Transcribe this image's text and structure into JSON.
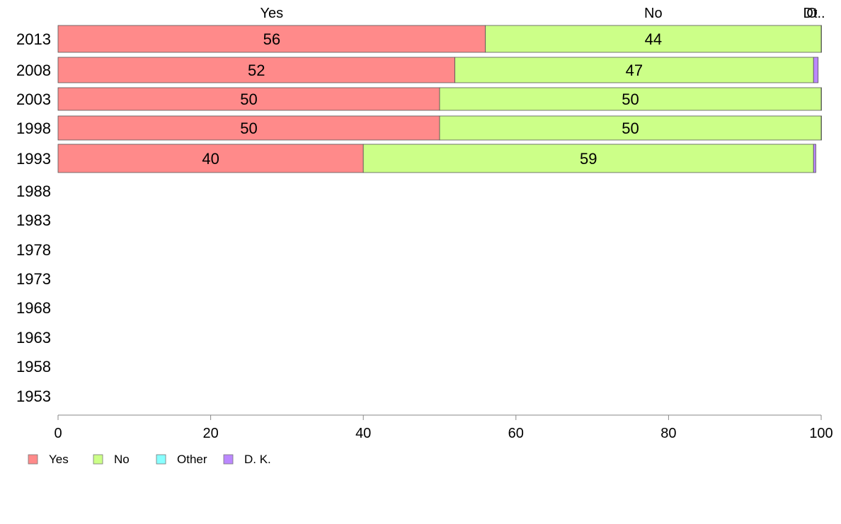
{
  "chart_data": {
    "type": "bar",
    "orientation": "horizontal",
    "stacked": true,
    "categories": [
      "2013",
      "2008",
      "2003",
      "1998",
      "1993",
      "1988",
      "1983",
      "1978",
      "1973",
      "1968",
      "1963",
      "1958",
      "1953"
    ],
    "series": [
      {
        "name": "Yes",
        "color": "#ff8a8a",
        "values": [
          56,
          52,
          50,
          50,
          40,
          null,
          null,
          null,
          null,
          null,
          null,
          null,
          null
        ]
      },
      {
        "name": "No",
        "color": "#ccff88",
        "values": [
          44,
          47,
          50,
          50,
          59,
          null,
          null,
          null,
          null,
          null,
          null,
          null,
          null
        ]
      },
      {
        "name": "Other",
        "color": "#88ffff",
        "values": [
          0,
          0,
          0,
          0,
          0,
          null,
          null,
          null,
          null,
          null,
          null,
          null,
          null
        ]
      },
      {
        "name": "D. K.",
        "color": "#bb88ff",
        "values": [
          0.5,
          0.6,
          0.3,
          0.1,
          0.3,
          null,
          null,
          null,
          null,
          null,
          null,
          null,
          null
        ]
      }
    ],
    "data_labels": [
      [
        "56",
        "44",
        "",
        ""
      ],
      [
        "52",
        "47",
        "",
        ""
      ],
      [
        "50",
        "50",
        "",
        ""
      ],
      [
        "50",
        "50",
        "",
        ""
      ],
      [
        "40",
        "59",
        "",
        ""
      ]
    ],
    "top_labels": [
      "Yes",
      "No",
      "O",
      "Dt.."
    ],
    "xlim": [
      0,
      100
    ],
    "xticks": [
      "0",
      "20",
      "40",
      "60",
      "80",
      "100"
    ],
    "grid": false,
    "legend_position": "bottom-left"
  }
}
